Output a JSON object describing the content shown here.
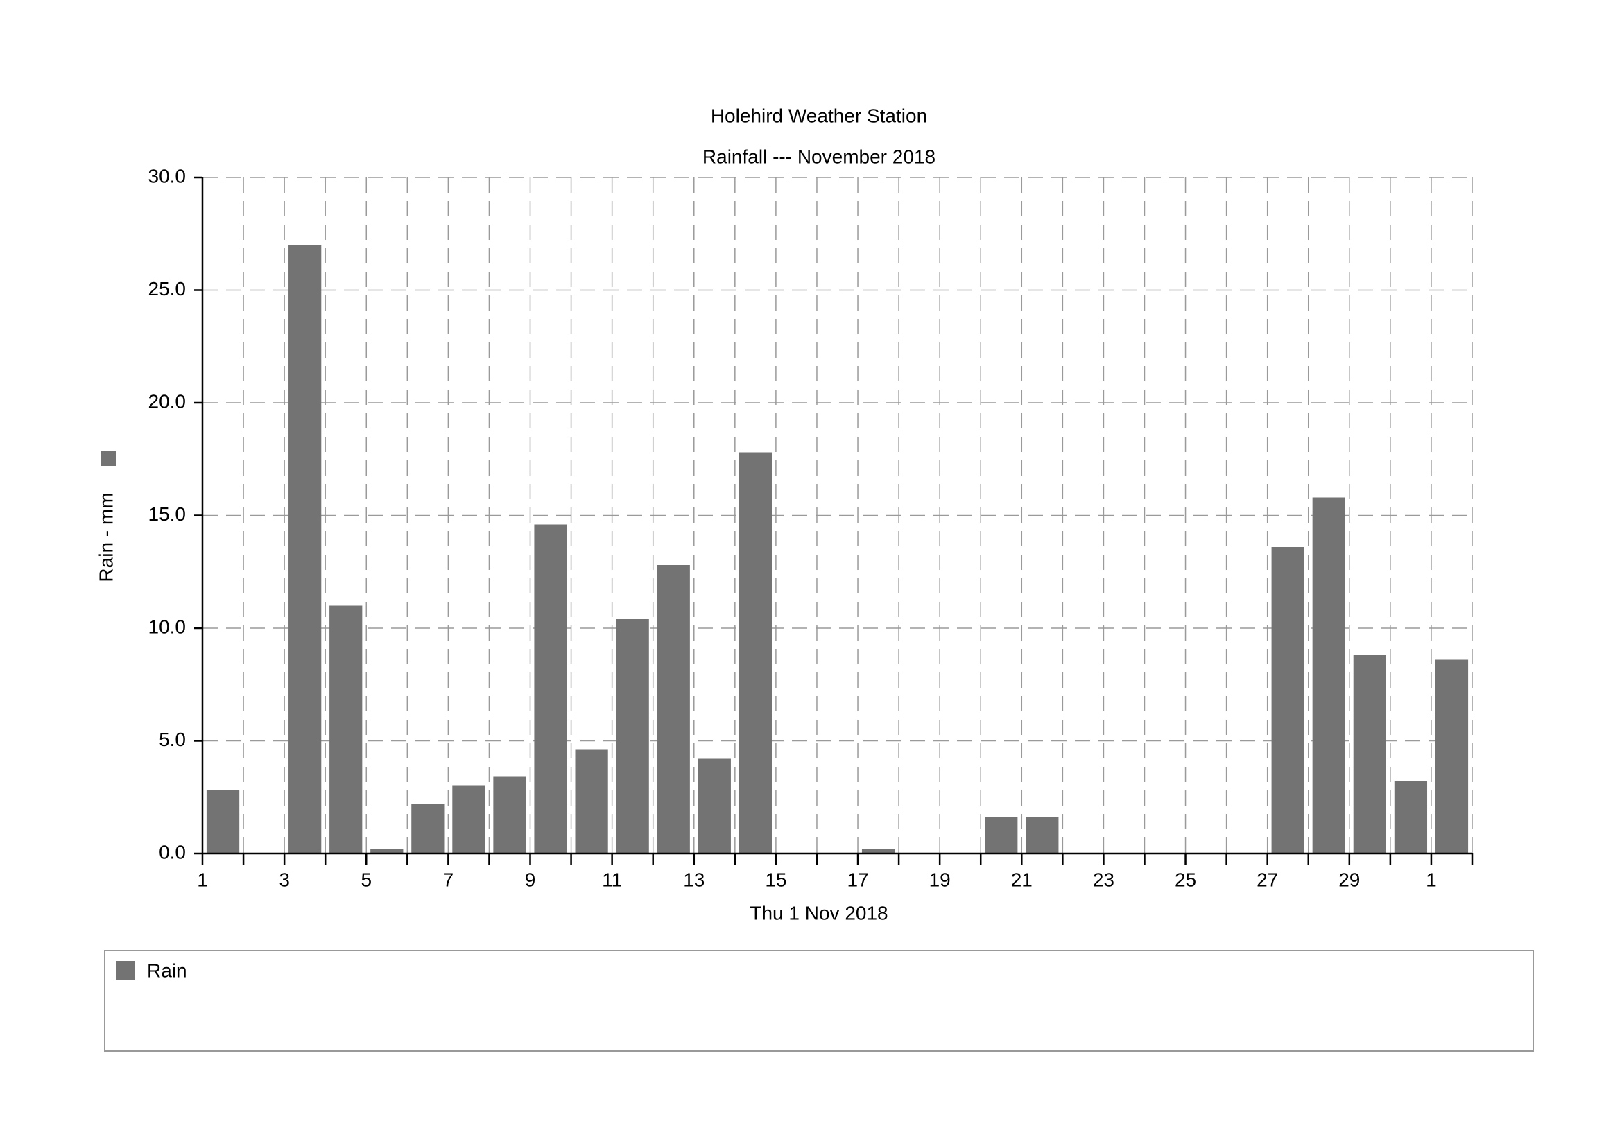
{
  "chart_data": {
    "type": "bar",
    "title": "Holehird Weather Station",
    "subtitle": "Rainfall --- November 2018",
    "x_label": "Thu 1 Nov 2018",
    "y_label": "Rain - mm",
    "categories": [
      "1",
      null,
      "3",
      null,
      "5",
      null,
      "7",
      null,
      "9",
      null,
      "11",
      null,
      "13",
      null,
      "15",
      null,
      "17",
      null,
      "19",
      null,
      "21",
      null,
      "23",
      null,
      "25",
      null,
      "27",
      null,
      "29",
      null,
      "1"
    ],
    "series": [
      {
        "name": "Rain",
        "color": "#737373",
        "values": [
          2.8,
          0,
          27.0,
          11.0,
          0.2,
          2.2,
          3.0,
          3.4,
          14.6,
          4.6,
          10.4,
          12.8,
          4.2,
          17.8,
          0,
          0,
          0.2,
          0,
          0,
          1.6,
          1.6,
          0,
          0,
          0,
          0,
          0,
          13.6,
          15.8,
          8.8,
          3.2,
          8.6
        ]
      }
    ],
    "ylim": [
      0,
      30
    ],
    "yticks": [
      {
        "value": 0,
        "label": "0.0"
      },
      {
        "value": 5,
        "label": "5.0"
      },
      {
        "value": 10,
        "label": "10.0"
      },
      {
        "value": 15,
        "label": "15.0"
      },
      {
        "value": 20,
        "label": "20.0"
      },
      {
        "value": 25,
        "label": "25.0"
      },
      {
        "value": 30,
        "label": "30.0"
      }
    ],
    "grid": true
  }
}
